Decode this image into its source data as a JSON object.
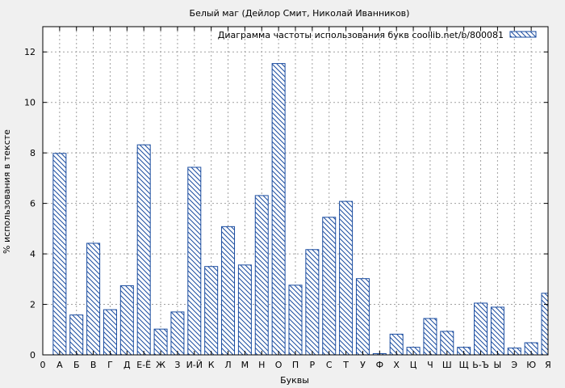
{
  "chart_data": {
    "type": "bar",
    "title": "Белый маг (Дейлор Смит, Николай Иванников)",
    "xlabel": "Буквы",
    "ylabel": "% использования в тексте",
    "legend": {
      "label": "Диаграмма частоты использования букв coollib.net/b/800081",
      "placement": "top-right"
    },
    "grid": true,
    "ylim": [
      0,
      13
    ],
    "yticks": [
      0,
      2,
      4,
      6,
      8,
      10,
      12
    ],
    "x_tick_labels": [
      "0",
      "А",
      "Б",
      "В",
      "Г",
      "Д",
      "Е-Ё",
      "Ж",
      "З",
      "И-Й",
      "К",
      "Л",
      "М",
      "Н",
      "О",
      "П",
      "Р",
      "С",
      "Т",
      "У",
      "Ф",
      "Х",
      "Ц",
      "Ч",
      "Ш",
      "Щ",
      "Ь-Ъ",
      "Ы",
      "Э",
      "Ю",
      "Я"
    ],
    "categories": [
      "А",
      "Б",
      "В",
      "Г",
      "Д",
      "Е-Ё",
      "Ж",
      "З",
      "И-Й",
      "К",
      "Л",
      "М",
      "Н",
      "О",
      "П",
      "Р",
      "С",
      "Т",
      "У",
      "Ф",
      "Х",
      "Ц",
      "Ч",
      "Ш",
      "Щ",
      "Ь-Ъ",
      "Ы",
      "Э",
      "Ю",
      "Я"
    ],
    "values": [
      7.98,
      1.58,
      4.42,
      1.79,
      2.74,
      8.32,
      1.02,
      1.7,
      7.43,
      3.5,
      5.08,
      3.56,
      6.31,
      11.54,
      2.76,
      4.17,
      5.45,
      6.08,
      3.02,
      0.05,
      0.82,
      0.3,
      1.44,
      0.93,
      0.3,
      2.05,
      1.89,
      0.27,
      0.48,
      2.44
    ],
    "colors": {
      "bar_stroke": "#1a4ca0",
      "hatch": "#1a4ca0",
      "bar_fill": "#ffffff",
      "plot_bg": "#ffffff",
      "page_bg": "#f0f0f0",
      "grid": "#a0a0a0"
    }
  }
}
